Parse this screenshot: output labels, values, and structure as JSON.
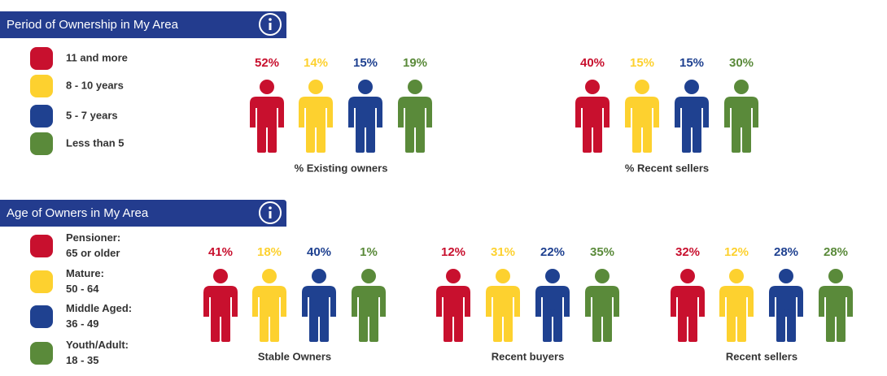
{
  "sections": [
    {
      "title": "Period of Ownership in My Area",
      "legend": [
        {
          "lines": [
            "11 and more"
          ],
          "color": "#c8102e"
        },
        {
          "lines": [
            "8 - 10 years"
          ],
          "color": "#fdd12f"
        },
        {
          "lines": [
            "5 - 7 years"
          ],
          "color": "#1f4190"
        },
        {
          "lines": [
            "Less than 5"
          ],
          "color": "#5a8a3a"
        }
      ],
      "groups": [
        {
          "caption": "% Existing owners",
          "values": [
            "52%",
            "14%",
            "15%",
            "19%"
          ]
        },
        {
          "caption": "% Recent sellers",
          "values": [
            "40%",
            "15%",
            "15%",
            "30%"
          ]
        }
      ]
    },
    {
      "title": "Age of Owners in My Area",
      "legend": [
        {
          "lines": [
            "Pensioner:",
            "65 or older"
          ],
          "color": "#c8102e"
        },
        {
          "lines": [
            "Mature:",
            "50 - 64"
          ],
          "color": "#fdd12f"
        },
        {
          "lines": [
            "Middle Aged:",
            "36 - 49"
          ],
          "color": "#1f4190"
        },
        {
          "lines": [
            "Youth/Adult:",
            "18 - 35"
          ],
          "color": "#5a8a3a"
        }
      ],
      "groups": [
        {
          "caption": "Stable Owners",
          "values": [
            "41%",
            "18%",
            "40%",
            "1%"
          ]
        },
        {
          "caption": "Recent buyers",
          "values": [
            "12%",
            "31%",
            "22%",
            "35%"
          ]
        },
        {
          "caption": "Recent sellers",
          "values": [
            "32%",
            "12%",
            "28%",
            "28%"
          ]
        }
      ]
    }
  ]
}
